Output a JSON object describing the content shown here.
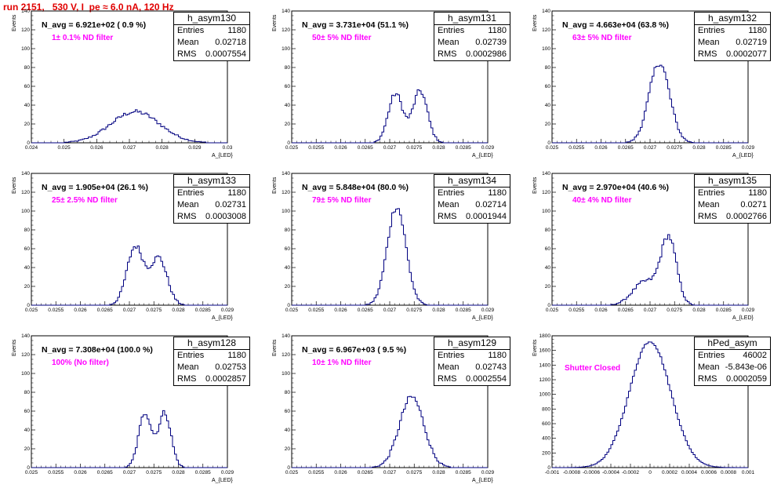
{
  "page_title": "run 2151,   530 V, I_pe ≈ 6.0 nA, 120 Hz",
  "stats_labels": {
    "entries": "Entries",
    "mean": "Mean",
    "rms": "RMS"
  },
  "colors": {
    "hist_line": "#000080",
    "title": "#e00000",
    "annotation": "#ff00ff"
  },
  "pads": [
    {
      "name": "h_asym130",
      "entries": "1180",
      "mean": "0.02718",
      "rms": "0.0007554",
      "nline": "N_avg = 6.921e+02 ( 0.9 %)",
      "filter": "1± 0.1% ND filter",
      "ylabel": "Events",
      "xlabel": "A_{LED}"
    },
    {
      "name": "h_asym131",
      "entries": "1180",
      "mean": "0.02739",
      "rms": "0.0002986",
      "nline": "N_avg = 3.731e+04 (51.1 %)",
      "filter": "50± 5% ND filter",
      "ylabel": "Events",
      "xlabel": "A_{LED}"
    },
    {
      "name": "h_asym132",
      "entries": "1180",
      "mean": "0.02719",
      "rms": "0.0002077",
      "nline": "N_avg = 4.663e+04 (63.8 %)",
      "filter": "63± 5% ND filter",
      "ylabel": "Events",
      "xlabel": "A_{LED}"
    },
    {
      "name": "h_asym133",
      "entries": "1180",
      "mean": "0.02731",
      "rms": "0.0003008",
      "nline": "N_avg = 1.905e+04 (26.1 %)",
      "filter": "25± 2.5% ND filter",
      "ylabel": "Events",
      "xlabel": "A_{LED}"
    },
    {
      "name": "h_asym134",
      "entries": "1180",
      "mean": "0.02714",
      "rms": "0.0001944",
      "nline": "N_avg = 5.848e+04 (80.0 %)",
      "filter": "79± 5% ND filter",
      "ylabel": "Events",
      "xlabel": "A_{LED}"
    },
    {
      "name": "h_asym135",
      "entries": "1180",
      "mean": "0.0271",
      "rms": "0.0002766",
      "nline": "N_avg = 2.970e+04 (40.6 %)",
      "filter": "40± 4% ND filter",
      "ylabel": "Events",
      "xlabel": "A_{LED}"
    },
    {
      "name": "h_asym128",
      "entries": "1180",
      "mean": "0.02753",
      "rms": "0.0002857",
      "nline": "N_avg = 7.308e+04 (100.0 %)",
      "filter": "100% (No filter)",
      "ylabel": "Events",
      "xlabel": "A_{LED}"
    },
    {
      "name": "h_asym129",
      "entries": "1180",
      "mean": "0.02743",
      "rms": "0.0002554",
      "nline": "N_avg = 6.967e+03 ( 9.5 %)",
      "filter": "10± 1% ND filter",
      "ylabel": "Events",
      "xlabel": "A_{LED}"
    },
    {
      "name": "hPed_asym",
      "entries": "46002",
      "mean": "-5.843e-06",
      "rms": "0.0002059",
      "nline": "",
      "filter": "Shutter Closed",
      "ylabel": "Events",
      "xlabel": ""
    }
  ],
  "chart_data": [
    {
      "type": "bar",
      "histogram": "h_asym130",
      "x_range": [
        0.024,
        0.03
      ],
      "ylim": [
        0,
        140
      ],
      "x_ticks": [
        "0.024",
        "0.025",
        "0.026",
        "0.027",
        "0.028",
        "0.029",
        "0.03"
      ],
      "y_ticks": [
        "0",
        "20",
        "40",
        "60",
        "80",
        "100",
        "120",
        "140"
      ],
      "peaks": [
        {
          "center": 0.02718,
          "sigma": 0.00075,
          "height": 33
        }
      ]
    },
    {
      "type": "bar",
      "histogram": "h_asym131",
      "x_range": [
        0.025,
        0.029
      ],
      "ylim": [
        0,
        140
      ],
      "x_ticks": [
        "0.025",
        "0.0255",
        "0.026",
        "0.0265",
        "0.027",
        "0.0275",
        "0.028",
        "0.0285",
        "0.029"
      ],
      "y_ticks": [
        "0",
        "20",
        "40",
        "60",
        "80",
        "100",
        "120",
        "140"
      ],
      "peaks": [
        {
          "center": 0.02712,
          "sigma": 0.00015,
          "height": 52
        },
        {
          "center": 0.02762,
          "sigma": 0.00015,
          "height": 55
        }
      ]
    },
    {
      "type": "bar",
      "histogram": "h_asym132",
      "x_range": [
        0.025,
        0.029
      ],
      "ylim": [
        0,
        140
      ],
      "x_ticks": [
        "0.025",
        "0.0255",
        "0.026",
        "0.0265",
        "0.027",
        "0.0275",
        "0.028",
        "0.0285",
        "0.029"
      ],
      "y_ticks": [
        "0",
        "20",
        "40",
        "60",
        "80",
        "100",
        "120",
        "140"
      ],
      "peaks": [
        {
          "center": 0.02719,
          "sigma": 0.00021,
          "height": 85
        }
      ]
    },
    {
      "type": "bar",
      "histogram": "h_asym133",
      "x_range": [
        0.025,
        0.029
      ],
      "ylim": [
        0,
        140
      ],
      "x_ticks": [
        "0.025",
        "0.0255",
        "0.026",
        "0.0265",
        "0.027",
        "0.0275",
        "0.028",
        "0.0285",
        "0.029"
      ],
      "y_ticks": [
        "0",
        "20",
        "40",
        "60",
        "80",
        "100",
        "120",
        "140"
      ],
      "peaks": [
        {
          "center": 0.02712,
          "sigma": 0.00017,
          "height": 62
        },
        {
          "center": 0.0276,
          "sigma": 0.00017,
          "height": 50
        }
      ]
    },
    {
      "type": "bar",
      "histogram": "h_asym134",
      "x_range": [
        0.025,
        0.029
      ],
      "ylim": [
        0,
        140
      ],
      "x_ticks": [
        "0.025",
        "0.0255",
        "0.026",
        "0.0265",
        "0.027",
        "0.0275",
        "0.028",
        "0.0285",
        "0.029"
      ],
      "y_ticks": [
        "0",
        "20",
        "40",
        "60",
        "80",
        "100",
        "120",
        "140"
      ],
      "peaks": [
        {
          "center": 0.02714,
          "sigma": 0.00019,
          "height": 105
        }
      ]
    },
    {
      "type": "bar",
      "histogram": "h_asym135",
      "x_range": [
        0.025,
        0.029
      ],
      "ylim": [
        0,
        140
      ],
      "x_ticks": [
        "0.025",
        "0.0255",
        "0.026",
        "0.0265",
        "0.027",
        "0.0275",
        "0.028",
        "0.0285",
        "0.029"
      ],
      "y_ticks": [
        "0",
        "20",
        "40",
        "60",
        "80",
        "100",
        "120",
        "140"
      ],
      "peaks": [
        {
          "center": 0.02738,
          "sigma": 0.00016,
          "height": 70
        },
        {
          "center": 0.0269,
          "sigma": 0.00025,
          "height": 25
        }
      ]
    },
    {
      "type": "bar",
      "histogram": "h_asym128",
      "x_range": [
        0.025,
        0.029
      ],
      "ylim": [
        0,
        140
      ],
      "x_ticks": [
        "0.025",
        "0.0255",
        "0.026",
        "0.0265",
        "0.027",
        "0.0275",
        "0.028",
        "0.0285",
        "0.029"
      ],
      "y_ticks": [
        "0",
        "20",
        "40",
        "60",
        "80",
        "100",
        "120",
        "140"
      ],
      "peaks": [
        {
          "center": 0.02732,
          "sigma": 0.00013,
          "height": 58
        },
        {
          "center": 0.02772,
          "sigma": 0.00013,
          "height": 58
        }
      ]
    },
    {
      "type": "bar",
      "histogram": "h_asym129",
      "x_range": [
        0.025,
        0.029
      ],
      "ylim": [
        0,
        140
      ],
      "x_ticks": [
        "0.025",
        "0.0255",
        "0.026",
        "0.0265",
        "0.027",
        "0.0275",
        "0.028",
        "0.0285",
        "0.029"
      ],
      "y_ticks": [
        "0",
        "20",
        "40",
        "60",
        "80",
        "100",
        "120",
        "140"
      ],
      "peaks": [
        {
          "center": 0.02745,
          "sigma": 0.00025,
          "height": 75
        }
      ]
    },
    {
      "type": "bar",
      "histogram": "hPed_asym",
      "x_range": [
        -0.001,
        0.001
      ],
      "ylim": [
        0,
        1900
      ],
      "x_ticks": [
        "-0.001",
        "-0.0008",
        "-0.0006",
        "-0.0004",
        "-0.0002",
        "0",
        "0.0002",
        "0.0004",
        "0.0006",
        "0.0008",
        "0.001"
      ],
      "y_ticks": [
        "0",
        "200",
        "400",
        "600",
        "800",
        "1000",
        "1200",
        "1400",
        "1600",
        "1800"
      ],
      "peaks": [
        {
          "center": 0.0,
          "sigma": 0.00021,
          "height": 1820
        }
      ]
    }
  ]
}
